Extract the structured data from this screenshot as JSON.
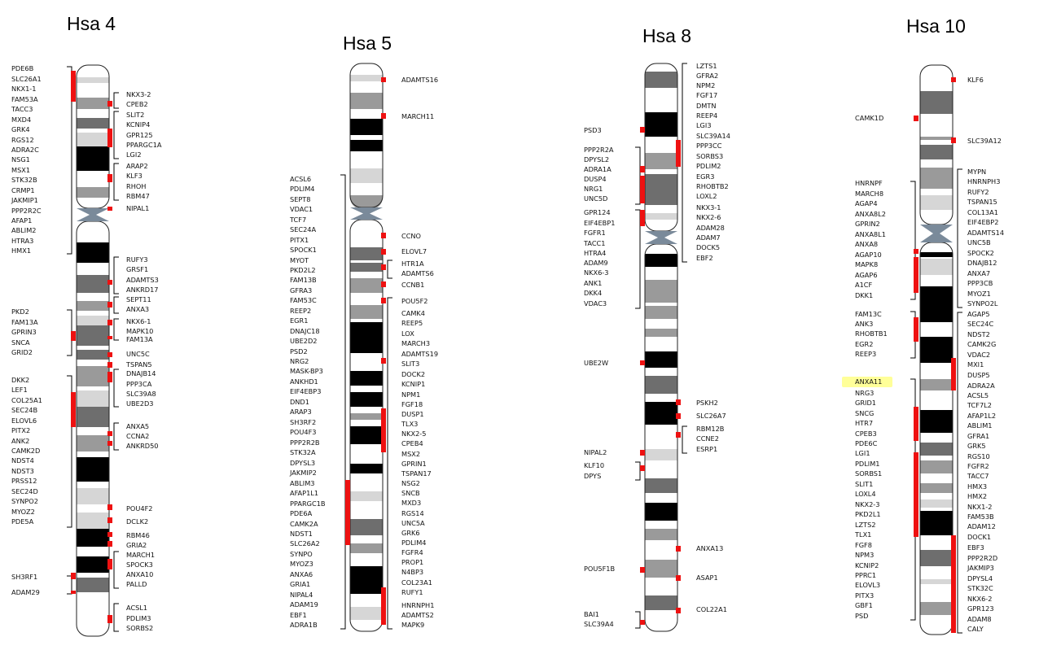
{
  "colors": {
    "marker": "#ee1111",
    "bracket": "#000000",
    "highlight": "#ffff99",
    "centromere": "#7a8a9a",
    "outline": "#222222"
  },
  "band_shades": {
    "b": "#000000",
    "d": "#6e6e6e",
    "m": "#9a9a9a",
    "l": "#d6d6d6",
    "w": "#ffffff"
  },
  "chromosomes": [
    {
      "id": "hsa4",
      "title": "Hsa 4",
      "bands": [
        [
          "w",
          80,
          95
        ],
        [
          "l",
          95,
          102
        ],
        [
          "w",
          102,
          120
        ],
        [
          "m",
          120,
          134
        ],
        [
          "w",
          134,
          145
        ],
        [
          "d",
          145,
          158
        ],
        [
          "w",
          158,
          163
        ],
        [
          "l",
          163,
          180
        ],
        [
          "b",
          180,
          210
        ],
        [
          "w",
          210,
          230
        ],
        [
          "m",
          230,
          243
        ],
        [
          "w",
          243,
          256
        ],
        [
          "b",
          298,
          323
        ],
        [
          "w",
          323,
          338
        ],
        [
          "d",
          338,
          360
        ],
        [
          "w",
          360,
          370
        ],
        [
          "m",
          370,
          382
        ],
        [
          "w",
          382,
          388
        ],
        [
          "l",
          388,
          400
        ],
        [
          "d",
          400,
          425
        ],
        [
          "w",
          425,
          430
        ],
        [
          "d",
          430,
          442
        ],
        [
          "w",
          442,
          450
        ],
        [
          "m",
          450,
          475
        ],
        [
          "w",
          475,
          480
        ],
        [
          "l",
          480,
          500
        ],
        [
          "d",
          500,
          525
        ],
        [
          "w",
          525,
          535
        ],
        [
          "m",
          535,
          555
        ],
        [
          "w",
          555,
          562
        ],
        [
          "b",
          562,
          592
        ],
        [
          "w",
          592,
          600
        ],
        [
          "l",
          600,
          620
        ],
        [
          "w",
          620,
          630
        ],
        [
          "l",
          630,
          650
        ],
        [
          "b",
          650,
          672
        ],
        [
          "w",
          672,
          684
        ],
        [
          "b",
          684,
          704
        ],
        [
          "w",
          704,
          710
        ],
        [
          "d",
          710,
          728
        ],
        [
          "w",
          728,
          782
        ]
      ]
    },
    {
      "id": "hsa5",
      "title": "Hsa 5",
      "bands": [
        [
          "w",
          78,
          92
        ],
        [
          "l",
          92,
          100
        ],
        [
          "w",
          100,
          114
        ],
        [
          "m",
          114,
          134
        ],
        [
          "w",
          134,
          146
        ],
        [
          "b",
          146,
          166
        ],
        [
          "w",
          166,
          172
        ],
        [
          "b",
          172,
          186
        ],
        [
          "w",
          186,
          207
        ],
        [
          "l",
          207,
          225
        ],
        [
          "w",
          225,
          240
        ],
        [
          "m",
          240,
          255
        ],
        [
          "w",
          270,
          304
        ],
        [
          "d",
          304,
          320
        ],
        [
          "w",
          320,
          323
        ],
        [
          "d",
          323,
          334
        ],
        [
          "w",
          334,
          342
        ],
        [
          "m",
          342,
          360
        ],
        [
          "w",
          360,
          375
        ],
        [
          "m",
          375,
          392
        ],
        [
          "w",
          392,
          396
        ],
        [
          "b",
          396,
          434
        ],
        [
          "w",
          434,
          456
        ],
        [
          "b",
          456,
          474
        ],
        [
          "w",
          474,
          482
        ],
        [
          "b",
          482,
          500
        ],
        [
          "w",
          500,
          508
        ],
        [
          "m",
          508,
          516
        ],
        [
          "w",
          516,
          524
        ],
        [
          "b",
          524,
          546
        ],
        [
          "w",
          546,
          570
        ],
        [
          "b",
          570,
          582
        ],
        [
          "w",
          582,
          604
        ],
        [
          "l",
          604,
          616
        ],
        [
          "w",
          616,
          638
        ],
        [
          "d",
          638,
          658
        ],
        [
          "w",
          658,
          668
        ],
        [
          "m",
          668,
          680
        ],
        [
          "w",
          680,
          696
        ],
        [
          "b",
          696,
          730
        ],
        [
          "w",
          730,
          746
        ],
        [
          "l",
          746,
          762
        ],
        [
          "w",
          762,
          776
        ]
      ]
    },
    {
      "id": "hsa8",
      "title": "Hsa 8",
      "bands": [
        [
          "w",
          78,
          88
        ],
        [
          "d",
          88,
          108
        ],
        [
          "w",
          108,
          138
        ],
        [
          "b",
          138,
          168
        ],
        [
          "w",
          168,
          188
        ],
        [
          "m",
          188,
          208
        ],
        [
          "w",
          208,
          214
        ],
        [
          "d",
          214,
          252
        ],
        [
          "w",
          252,
          262
        ],
        [
          "l",
          262,
          270
        ],
        [
          "w",
          270,
          284
        ],
        [
          "w",
          300,
          312
        ],
        [
          "b",
          312,
          328
        ],
        [
          "w",
          328,
          344
        ],
        [
          "m",
          344,
          372
        ],
        [
          "w",
          372,
          376
        ],
        [
          "m",
          376,
          392
        ],
        [
          "w",
          392,
          404
        ],
        [
          "m",
          404,
          414
        ],
        [
          "w",
          414,
          432
        ],
        [
          "b",
          432,
          452
        ],
        [
          "w",
          452,
          462
        ],
        [
          "d",
          462,
          484
        ],
        [
          "w",
          484,
          494
        ],
        [
          "b",
          494,
          522
        ],
        [
          "w",
          522,
          552
        ],
        [
          "l",
          552,
          566
        ],
        [
          "w",
          566,
          588
        ],
        [
          "d",
          588,
          606
        ],
        [
          "w",
          606,
          618
        ],
        [
          "b",
          618,
          640
        ],
        [
          "w",
          640,
          650
        ],
        [
          "m",
          650,
          664
        ],
        [
          "w",
          664,
          688
        ],
        [
          "m",
          688,
          710
        ],
        [
          "w",
          710,
          732
        ],
        [
          "d",
          732,
          750
        ],
        [
          "w",
          750,
          776
        ]
      ]
    },
    {
      "id": "hsa10",
      "title": "Hsa 10",
      "bands": [
        [
          "w",
          80,
          112
        ],
        [
          "d",
          112,
          140
        ],
        [
          "w",
          140,
          168
        ],
        [
          "m",
          168,
          172
        ],
        [
          "w",
          172,
          178
        ],
        [
          "d",
          178,
          196
        ],
        [
          "w",
          196,
          206
        ],
        [
          "m",
          206,
          232
        ],
        [
          "w",
          232,
          240
        ],
        [
          "l",
          240,
          258
        ],
        [
          "w",
          258,
          276
        ],
        [
          "w",
          298,
          310
        ],
        [
          "b",
          310,
          316
        ],
        [
          "w",
          316,
          318
        ],
        [
          "l",
          318,
          338
        ],
        [
          "w",
          338,
          352
        ],
        [
          "b",
          352,
          396
        ],
        [
          "w",
          396,
          414
        ],
        [
          "b",
          414,
          446
        ],
        [
          "w",
          446,
          466
        ],
        [
          "m",
          466,
          480
        ],
        [
          "w",
          480,
          504
        ],
        [
          "b",
          504,
          532
        ],
        [
          "w",
          532,
          544
        ],
        [
          "d",
          544,
          560
        ],
        [
          "w",
          560,
          566
        ],
        [
          "m",
          566,
          582
        ],
        [
          "w",
          582,
          594
        ],
        [
          "m",
          594,
          606
        ],
        [
          "w",
          606,
          614
        ],
        [
          "l",
          614,
          624
        ],
        [
          "w",
          624,
          628
        ],
        [
          "b",
          628,
          658
        ],
        [
          "w",
          658,
          676
        ],
        [
          "d",
          676,
          696
        ],
        [
          "w",
          696,
          712
        ],
        [
          "l",
          712,
          718
        ],
        [
          "w",
          718,
          740
        ],
        [
          "m",
          740,
          756
        ],
        [
          "w",
          756,
          780
        ]
      ]
    }
  ],
  "gene_labels": {
    "hsa4_left": [
      "PDE6B",
      "SLC26A1",
      "NKX1-1",
      "FAM53A",
      "TACC3",
      "MXD4",
      "GRK4",
      "RGS12",
      "ADRA2C",
      "NSG1",
      "MSX1",
      "STK32B",
      "CRMP1",
      "JAKMIP1",
      "PPP2R2C",
      "AFAP1",
      "ABLIM2",
      "HTRA3",
      "HMX1",
      "PKD2",
      "FAM13A",
      "GPRIN3",
      "SNCA",
      "GRID2",
      "DKK2",
      "LEF1",
      "COL25A1",
      "SEC24B",
      "ELOVL6",
      "PITX2",
      "ANK2",
      "CAMK2D",
      "NDST4",
      "NDST3",
      "PRSS12",
      "SEC24D",
      "SYNPO2",
      "MYOZ2",
      "PDE5A",
      "SH3RF1",
      "ADAM29"
    ],
    "hsa4_right": [
      "NKX3-2",
      "CPEB2",
      "SLIT2",
      "KCNIP4",
      "GPR125",
      "PPARGC1A",
      "LGI2",
      "ARAP2",
      "KLF3",
      "RHOH",
      "RBM47",
      "NIPAL1",
      "RUFY3",
      "GRSF1",
      "ADAMTS3",
      "ANKRD17",
      "SEPT11",
      "ANXA3",
      "NKX6-1",
      "MAPK10",
      "FAM13A",
      "UNC5C",
      "TSPAN5",
      "DNAJB14",
      "PPP3CA",
      "SLC39A8",
      "UBE2D3",
      "ANXA5",
      "CCNA2",
      "ANKRD50",
      "POU4F2",
      "DCLK2",
      "RBM46",
      "GRIA2",
      "MARCH1",
      "SPOCK3",
      "ANXA10",
      "PALLD",
      "ACSL1",
      "PDLIM3",
      "SORBS2"
    ],
    "hsa5_left": [
      "ACSL6",
      "PDLIM4",
      "SEPT8",
      "VDAC1",
      "TCF7",
      "SEC24A",
      "PITX1",
      "SPOCK1",
      "MYOT",
      "PKD2L2",
      "FAM13B",
      "GFRA3",
      "FAM53C",
      "REEP2",
      "EGR1",
      "DNAJC18",
      "UBE2D2",
      "PSD2",
      "NRG2",
      "MASK-BP3",
      "ANKHD1",
      "EIF4EBP3",
      "DND1",
      "ARAP3",
      "SH3RF2",
      "POU4F3",
      "PPP2R2B",
      "STK32A",
      "DPYSL3",
      "JAKMIP2",
      "ABLIM3",
      "AFAP1L1",
      "PPARGC1B",
      "PDE6A",
      "CAMK2A",
      "NDST1",
      "SLC26A2",
      "SYNPO",
      "MYOZ3",
      "ANXA6",
      "GRIA1",
      "NIPAL4",
      "ADAM19",
      "EBF1",
      "ADRA1B"
    ],
    "hsa5_right": [
      "ADAMTS16",
      "MARCH11",
      "CCNO",
      "ELOVL7",
      "HTR1A",
      "ADAMTS6",
      "CCNB1",
      "POU5F2",
      "CAMK4",
      "REEP5",
      "LOX",
      "MARCH3",
      "ADAMTS19",
      "SLIT3",
      "DOCK2",
      "KCNIP1",
      "NPM1",
      "FGF18",
      "DUSP1",
      "TLX3",
      "NKX2-5",
      "CPEB4",
      "MSX2",
      "GPRIN1",
      "TSPAN17",
      "NSG2",
      "SNCB",
      "MXD3",
      "RGS14",
      "UNC5A",
      "GRK6",
      "PDLIM4",
      "FGFR4",
      "PROP1",
      "N4BP3",
      "COL23A1",
      "RUFY1",
      "HNRNPH1",
      "ADAMTS2",
      "MAPK9"
    ],
    "hsa8_left": [
      "PSD3",
      "PPP2R2A",
      "DPYSL2",
      "ADRA1A",
      "DUSP4",
      "NRG1",
      "UNC5D",
      "GPR124",
      "EIF4EBP1",
      "FGFR1",
      "TACC1",
      "HTRA4",
      "ADAM9",
      "NKX6-3",
      "ANK1",
      "DKK4",
      "VDAC3",
      "UBE2W",
      "NIPAL2",
      "KLF10",
      "DPYS",
      "POU5F1B",
      "BAI1",
      "SLC39A4"
    ],
    "hsa8_right": [
      "LZTS1",
      "GFRA2",
      "NPM2",
      "FGF17",
      "DMTN",
      "REEP4",
      "LGI3",
      "SLC39A14",
      "PPP3CC",
      "SORBS3",
      "PDLIM2",
      "EGR3",
      "RHOBTB2",
      "LOXL2",
      "NKX3-1",
      "NKX2-6",
      "ADAM28",
      "ADAM7",
      "DOCK5",
      "EBF2",
      "PSKH2",
      "SLC26A7",
      "RBM12B",
      "CCNE2",
      "ESRP1",
      "ANXA13",
      "ASAP1",
      "COL22A1"
    ],
    "hsa10_left": [
      "CAMK1D",
      "HNRNPF",
      "MARCH8",
      "AGAP4",
      "ANXA8L2",
      "GPRIN2",
      "ANXA8L1",
      "ANXA8",
      "AGAP10",
      "MAPK8",
      "AGAP6",
      "A1CF",
      "DKK1",
      "FAM13C",
      "ANK3",
      "RHOBTB1",
      "EGR2",
      "REEP3",
      "ANXA11",
      "NRG3",
      "GRID1",
      "SNCG",
      "HTR7",
      "CPEB3",
      "PDE6C",
      "LGI1",
      "PDLIM1",
      "SORBS1",
      "SLIT1",
      "LOXL4",
      "NKX2-3",
      "PKD2L1",
      "LZTS2",
      "TLX1",
      "FGF8",
      "NPM3",
      "KCNIP2",
      "PPRC1",
      "ELOVL3",
      "PITX3",
      "GBF1",
      "PSD"
    ],
    "hsa10_right": [
      "KLF6",
      "SLC39A12",
      "MYPN",
      "HNRNPH3",
      "RUFY2",
      "TSPAN15",
      "COL13A1",
      "EIF4EBP2",
      "ADAMTS14",
      "UNC5B",
      "SPOCK2",
      "DNAJB12",
      "ANXA7",
      "PPP3CB",
      "MYOZ1",
      "SYNPO2L",
      "AGAP5",
      "SEC24C",
      "NDST2",
      "CAMK2G",
      "VDAC2",
      "MXI1",
      "DUSP5",
      "ADRA2A",
      "ACSL5",
      "TCF7L2",
      "AFAP1L2",
      "ABLIM1",
      "GFRA1",
      "GRK5",
      "RGS10",
      "FGFR2",
      "TACC7",
      "HMX3",
      "HMX2",
      "NKX1-2",
      "FAM53B",
      "ADAM12",
      "DOCK1",
      "EBF3",
      "PPP2R2D",
      "JAKMIP3",
      "DPYSL4",
      "STK32C",
      "NKX6-2",
      "GPR123",
      "ADAM8",
      "CALY"
    ]
  },
  "highlighted_gene": "ANXA11"
}
